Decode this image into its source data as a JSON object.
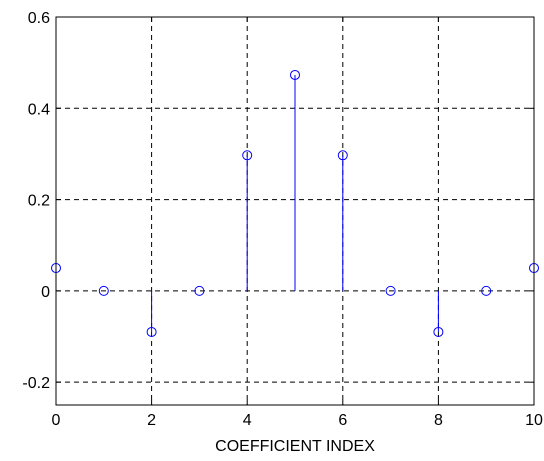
{
  "chart_data": {
    "type": "stem",
    "title": "",
    "xlabel": "COEFFICIENT INDEX",
    "ylabel": "",
    "xlim": [
      0,
      10
    ],
    "ylim": [
      -0.25,
      0.6
    ],
    "xticks": [
      0,
      2,
      4,
      6,
      8,
      10
    ],
    "xtick_labels": [
      "0",
      "2",
      "4",
      "6",
      "8",
      "10"
    ],
    "yticks": [
      -0.2,
      0,
      0.2,
      0.4,
      0.6
    ],
    "ytick_labels": [
      "-0.2",
      "0",
      "0.2",
      "0.4",
      "0.6"
    ],
    "grid": true,
    "marker": "circle",
    "color": "#0000ff",
    "x": [
      0,
      1,
      2,
      3,
      4,
      5,
      6,
      7,
      8,
      9,
      10
    ],
    "y": [
      0.05,
      0,
      -0.09,
      0,
      0.297,
      0.473,
      0.297,
      0,
      -0.09,
      0,
      0.05
    ]
  }
}
